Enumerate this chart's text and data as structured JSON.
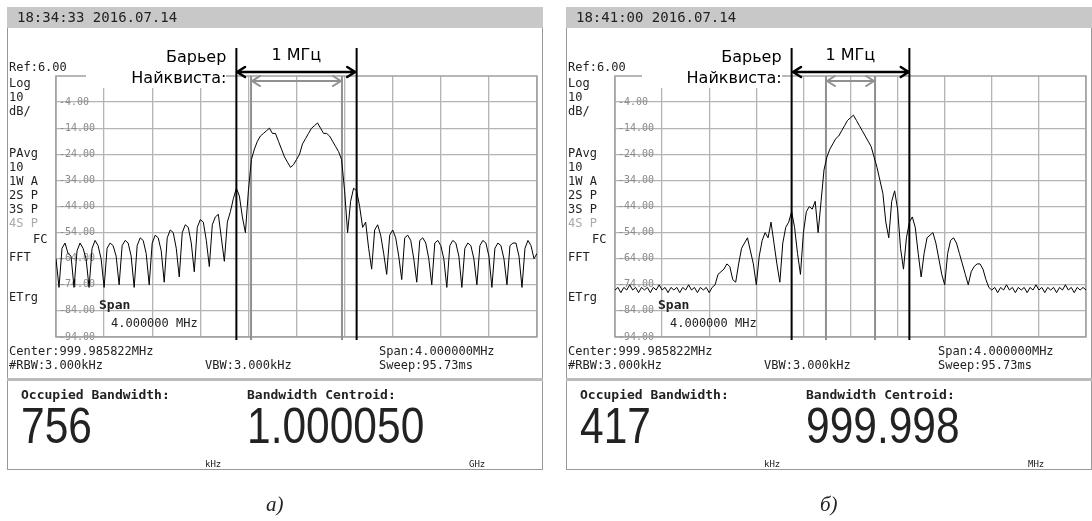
{
  "chart_data": [
    {
      "type": "line",
      "title": "18:34:33 2016.07.14",
      "color": "#000000",
      "grid": true,
      "tick_labels": "y",
      "categories": [
        null,
        null,
        null,
        null,
        null,
        null,
        null,
        null,
        null,
        null,
        null,
        null,
        null,
        null,
        null,
        null,
        null,
        null,
        null,
        null,
        null,
        null,
        null,
        null,
        null,
        null,
        null,
        null,
        null,
        null,
        null,
        null,
        null,
        null,
        null,
        null,
        null,
        null,
        null,
        null,
        null,
        null,
        null,
        null,
        null,
        null,
        null,
        null,
        null,
        null,
        null,
        null,
        null,
        null,
        null,
        null,
        null,
        null,
        null,
        null,
        null,
        null,
        null,
        null,
        null,
        null,
        null,
        null,
        null,
        null,
        null,
        null,
        null,
        null,
        null,
        null,
        null,
        null,
        null,
        null,
        null,
        null,
        null,
        null,
        null,
        null,
        null,
        null,
        null,
        null,
        null,
        null,
        null,
        null,
        null,
        null,
        null,
        null,
        null,
        null,
        null,
        null,
        null,
        null,
        null,
        null,
        null,
        null,
        null,
        null,
        null,
        null,
        null,
        null,
        null,
        null,
        null,
        null,
        null,
        null,
        null,
        null,
        null,
        null,
        null,
        null,
        null,
        null,
        null,
        null,
        null,
        null,
        null,
        null,
        null,
        null,
        null,
        null,
        null,
        null,
        null,
        null,
        null,
        null,
        null,
        null,
        null,
        null,
        null,
        null,
        null,
        null,
        null,
        null,
        null,
        null,
        null,
        null,
        null,
        null,
        null
      ],
      "ylim": [
        -94,
        6
      ],
      "yticks": [
        {
          "value": -4,
          "label": "-4.00"
        },
        {
          "value": -14,
          "label": "-14.00"
        },
        {
          "value": -24,
          "label": "-24.00"
        },
        {
          "value": -34,
          "label": "-34.00"
        },
        {
          "value": -44,
          "label": "-44.00"
        },
        {
          "value": -54,
          "label": "-54.00"
        },
        {
          "value": -64,
          "label": "-64.00"
        },
        {
          "value": -74,
          "label": "-74.00"
        },
        {
          "value": -84,
          "label": "-84.00"
        },
        {
          "value": -94,
          "label": "-94.00"
        }
      ],
      "values": [
        -64,
        -75,
        -60,
        -58,
        -62,
        -63,
        -75,
        -61,
        -58,
        -60,
        -64,
        -75,
        -60,
        -57,
        -59,
        -64,
        -75,
        -60,
        -58,
        -59,
        -63,
        -74,
        -59,
        -57,
        -58,
        -63,
        -75,
        -59,
        -56,
        -57,
        -62,
        -74,
        -58,
        -55,
        -56,
        -61,
        -73,
        -56,
        -53,
        -54,
        -60,
        -71,
        -54,
        -51,
        -52,
        -58,
        -69,
        -52,
        -49,
        -50,
        -57,
        -67,
        -51,
        -48,
        -47,
        -56,
        -65,
        -50,
        -46,
        -41,
        -37,
        -40,
        -48,
        -54,
        -38,
        -26,
        -22,
        -19,
        -17,
        -16,
        -15,
        -14,
        -16,
        -16,
        -19,
        -22,
        -25,
        -27,
        -29,
        -28,
        -26,
        -24,
        -20,
        -18,
        -16,
        -14,
        -13,
        -12,
        -14,
        -16,
        -16,
        -17,
        -19,
        -21,
        -23,
        -26,
        -38,
        -54,
        -42,
        -37,
        -38,
        -44,
        -52,
        -50,
        -60,
        -68,
        -53,
        -51,
        -55,
        -62,
        -70,
        -55,
        -53,
        -56,
        -63,
        -72,
        -56,
        -55,
        -57,
        -64,
        -73,
        -57,
        -56,
        -58,
        -64,
        -74,
        -58,
        -57,
        -59,
        -64,
        -75,
        -59,
        -57,
        -58,
        -63,
        -75,
        -60,
        -58,
        -59,
        -64,
        -74,
        -59,
        -57,
        -58,
        -63,
        -75,
        -60,
        -58,
        -59,
        -64,
        -74,
        -59,
        -58,
        -58,
        -63,
        -75,
        -60,
        -57,
        -59,
        -64,
        -62
      ],
      "annotations": [
        "Ref:6.00",
        "Log",
        "10",
        "dB/",
        "PAvg",
        "10",
        "1W A",
        "2S P",
        "3S P",
        "4S P",
        "FC",
        "FFT",
        "ETrg",
        "Span",
        "4.000000 MHz",
        "Center:999.985822MHz",
        "#RBW:3.000kHz",
        "VBW:3.000kHz",
        "Span:4.000000MHz",
        "Sweep:95.73ms",
        "Occupied Bandwidth:",
        "756",
        "kHz",
        "Bandwidth Centroid:",
        "1.000050",
        "GHz",
        "1 МГц",
        "а)",
        "Барьер Найквиста:"
      ]
    },
    {
      "type": "line",
      "title": "18:41:00 2016.07.14",
      "color": "#000000",
      "grid": true,
      "tick_labels": "y",
      "categories": [
        null,
        null,
        null,
        null,
        null,
        null,
        null,
        null,
        null,
        null,
        null,
        null,
        null,
        null,
        null,
        null,
        null,
        null,
        null,
        null,
        null,
        null,
        null,
        null,
        null,
        null,
        null,
        null,
        null,
        null,
        null,
        null,
        null,
        null,
        null,
        null,
        null,
        null,
        null,
        null,
        null,
        null,
        null,
        null,
        null,
        null,
        null,
        null,
        null,
        null,
        null,
        null,
        null,
        null,
        null,
        null,
        null,
        null,
        null,
        null,
        null,
        null,
        null,
        null,
        null,
        null,
        null,
        null,
        null,
        null,
        null,
        null,
        null,
        null,
        null,
        null,
        null,
        null,
        null,
        null,
        null,
        null,
        null,
        null,
        null,
        null,
        null,
        null,
        null,
        null,
        null,
        null,
        null,
        null,
        null,
        null,
        null,
        null,
        null,
        null,
        null,
        null,
        null,
        null,
        null,
        null,
        null,
        null,
        null,
        null,
        null,
        null,
        null,
        null,
        null,
        null,
        null,
        null,
        null,
        null,
        null,
        null,
        null,
        null,
        null,
        null,
        null,
        null,
        null,
        null,
        null,
        null,
        null,
        null,
        null,
        null,
        null,
        null,
        null,
        null,
        null,
        null,
        null,
        null,
        null,
        null,
        null,
        null,
        null,
        null,
        null,
        null,
        null,
        null,
        null,
        null,
        null,
        null,
        null,
        null,
        null
      ],
      "ylim": [
        -94,
        6
      ],
      "yticks": [
        {
          "value": -4,
          "label": "-4.00"
        },
        {
          "value": -14,
          "label": "-14.00"
        },
        {
          "value": -24,
          "label": "-24.00"
        },
        {
          "value": -34,
          "label": "-34.00"
        },
        {
          "value": -44,
          "label": "-44.00"
        },
        {
          "value": -54,
          "label": "-54.00"
        },
        {
          "value": -64,
          "label": "-64.00"
        },
        {
          "value": -74,
          "label": "-74.00"
        },
        {
          "value": -84,
          "label": "-84.00"
        },
        {
          "value": -94,
          "label": "-94.00"
        }
      ],
      "values": [
        -76,
        -75,
        -77,
        -75,
        -76,
        -74,
        -76,
        -75,
        -77,
        -75,
        -76,
        -75,
        -77,
        -75,
        -76,
        -74,
        -76,
        -75,
        -77,
        -75,
        -76,
        -75,
        -77,
        -75,
        -76,
        -74,
        -76,
        -75,
        -77,
        -75,
        -76,
        -75,
        -77,
        -75,
        -74,
        -70,
        -69,
        -68,
        -66,
        -67,
        -72,
        -73,
        -66,
        -60,
        -58,
        -56,
        -61,
        -66,
        -74,
        -63,
        -57,
        -54,
        -56,
        -50,
        -58,
        -66,
        -73,
        -58,
        -52,
        -50,
        -46,
        -52,
        -62,
        -70,
        -54,
        -46,
        -44,
        -45,
        -42,
        -54,
        -42,
        -30,
        -25,
        -22,
        -20,
        -18,
        -17,
        -15,
        -13,
        -11,
        -10,
        -9,
        -11,
        -13,
        -15,
        -17,
        -19,
        -21,
        -25,
        -29,
        -34,
        -39,
        -50,
        -56,
        -42,
        -38,
        -45,
        -60,
        -68,
        -56,
        -50,
        -48,
        -52,
        -62,
        -71,
        -62,
        -56,
        -55,
        -54,
        -58,
        -64,
        -70,
        -74,
        -62,
        -57,
        -56,
        -58,
        -62,
        -66,
        -70,
        -74,
        -69,
        -67,
        -66,
        -66,
        -68,
        -72,
        -75,
        -76,
        -75,
        -77,
        -75,
        -76,
        -74,
        -76,
        -75,
        -77,
        -75,
        -76,
        -75,
        -77,
        -75,
        -76,
        -74,
        -76,
        -75,
        -77,
        -75,
        -76,
        -75,
        -77,
        -75,
        -76,
        -74,
        -76,
        -75,
        -77,
        -75,
        -76,
        -75,
        -76
      ],
      "annotations": [
        "Ref:6.00",
        "Log",
        "10",
        "dB/",
        "PAvg",
        "10",
        "1W A",
        "2S P",
        "3S P",
        "4S P",
        "FC",
        "FFT",
        "ETrg",
        "Span",
        "4.000000 MHz",
        "Center:999.985822MHz",
        "#RBW:3.000kHz",
        "VBW:3.000kHz",
        "Span:4.000000MHz",
        "Sweep:95.73ms",
        "Occupied Bandwidth:",
        "417",
        "kHz",
        "Bandwidth Centroid:",
        "999.998",
        "MHz",
        "1 МГц",
        "б)",
        "Барьер Найквиста:"
      ]
    }
  ]
}
